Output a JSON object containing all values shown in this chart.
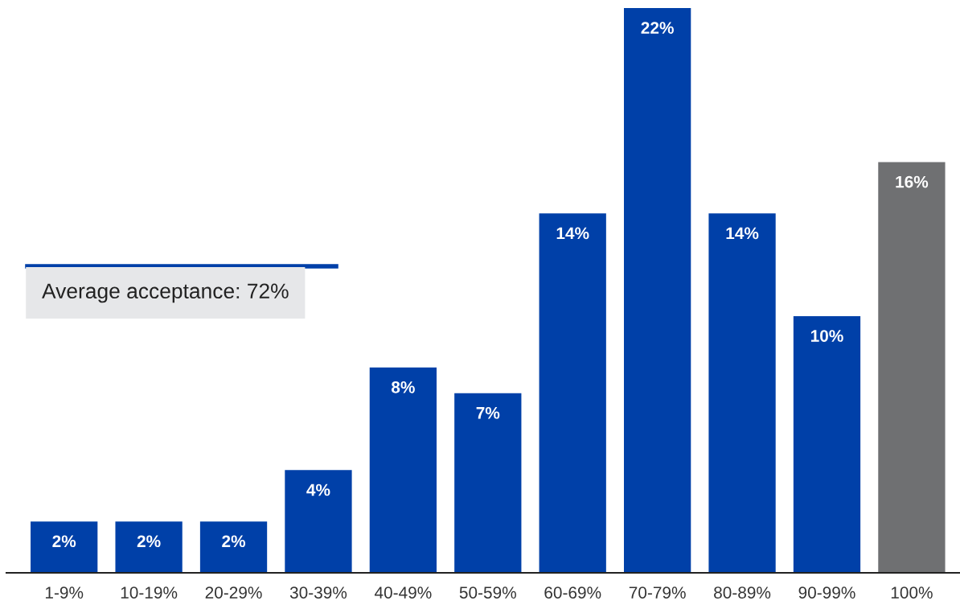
{
  "chart_data": {
    "type": "bar",
    "categories": [
      "1-9%",
      "10-19%",
      "20-29%",
      "30-39%",
      "40-49%",
      "50-59%",
      "60-69%",
      "70-79%",
      "80-89%",
      "90-99%",
      "100%"
    ],
    "values": [
      2,
      2,
      2,
      4,
      8,
      7,
      14,
      22,
      14,
      10,
      16
    ],
    "colors": [
      "#0040a8",
      "#0040a8",
      "#0040a8",
      "#0040a8",
      "#0040a8",
      "#0040a8",
      "#0040a8",
      "#0040a8",
      "#0040a8",
      "#0040a8",
      "#6f7072"
    ],
    "value_labels": [
      "2%",
      "2%",
      "2%",
      "4%",
      "8%",
      "7%",
      "14%",
      "22%",
      "14%",
      "10%",
      "16%"
    ],
    "annotations": [
      "Average acceptance: 72%"
    ],
    "grid": false,
    "legend": false
  }
}
